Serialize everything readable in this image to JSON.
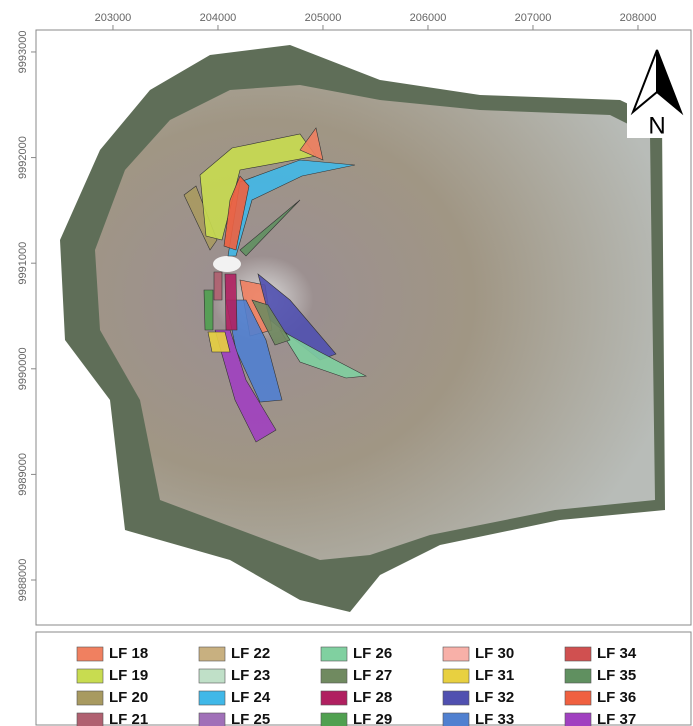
{
  "map": {
    "xlim": [
      202267,
      208505
    ],
    "ylim": [
      9987574,
      9993208
    ],
    "xticks": [
      203000,
      204000,
      205000,
      206000,
      207000,
      208000
    ],
    "yticks": [
      9988000,
      9989000,
      9990000,
      9991000,
      9992000,
      9993000
    ],
    "north": "N"
  },
  "legend": {
    "items": [
      {
        "label": "LF 18",
        "color": "#f08060"
      },
      {
        "label": "LF 19",
        "color": "#c8dc50"
      },
      {
        "label": "LF 20",
        "color": "#a89a60"
      },
      {
        "label": "LF 21",
        "color": "#b06070"
      },
      {
        "label": "LF 22",
        "color": "#c8b080"
      },
      {
        "label": "LF 23",
        "color": "#c0e0c8"
      },
      {
        "label": "LF 24",
        "color": "#40b8e8"
      },
      {
        "label": "LF 25",
        "color": "#a070b8"
      },
      {
        "label": "LF 26",
        "color": "#80d0a0"
      },
      {
        "label": "LF 27",
        "color": "#708a60"
      },
      {
        "label": "LF 28",
        "color": "#b02060"
      },
      {
        "label": "LF 29",
        "color": "#50a050"
      },
      {
        "label": "LF 30",
        "color": "#f8b0a8"
      },
      {
        "label": "LF 31",
        "color": "#e8d040"
      },
      {
        "label": "LF 32",
        "color": "#5050b0"
      },
      {
        "label": "LF 33",
        "color": "#5080d0"
      },
      {
        "label": "LF 34",
        "color": "#d05050"
      },
      {
        "label": "LF 35",
        "color": "#609060"
      },
      {
        "label": "LF 36",
        "color": "#f06040"
      },
      {
        "label": "LF 37",
        "color": "#a040c0"
      }
    ]
  }
}
